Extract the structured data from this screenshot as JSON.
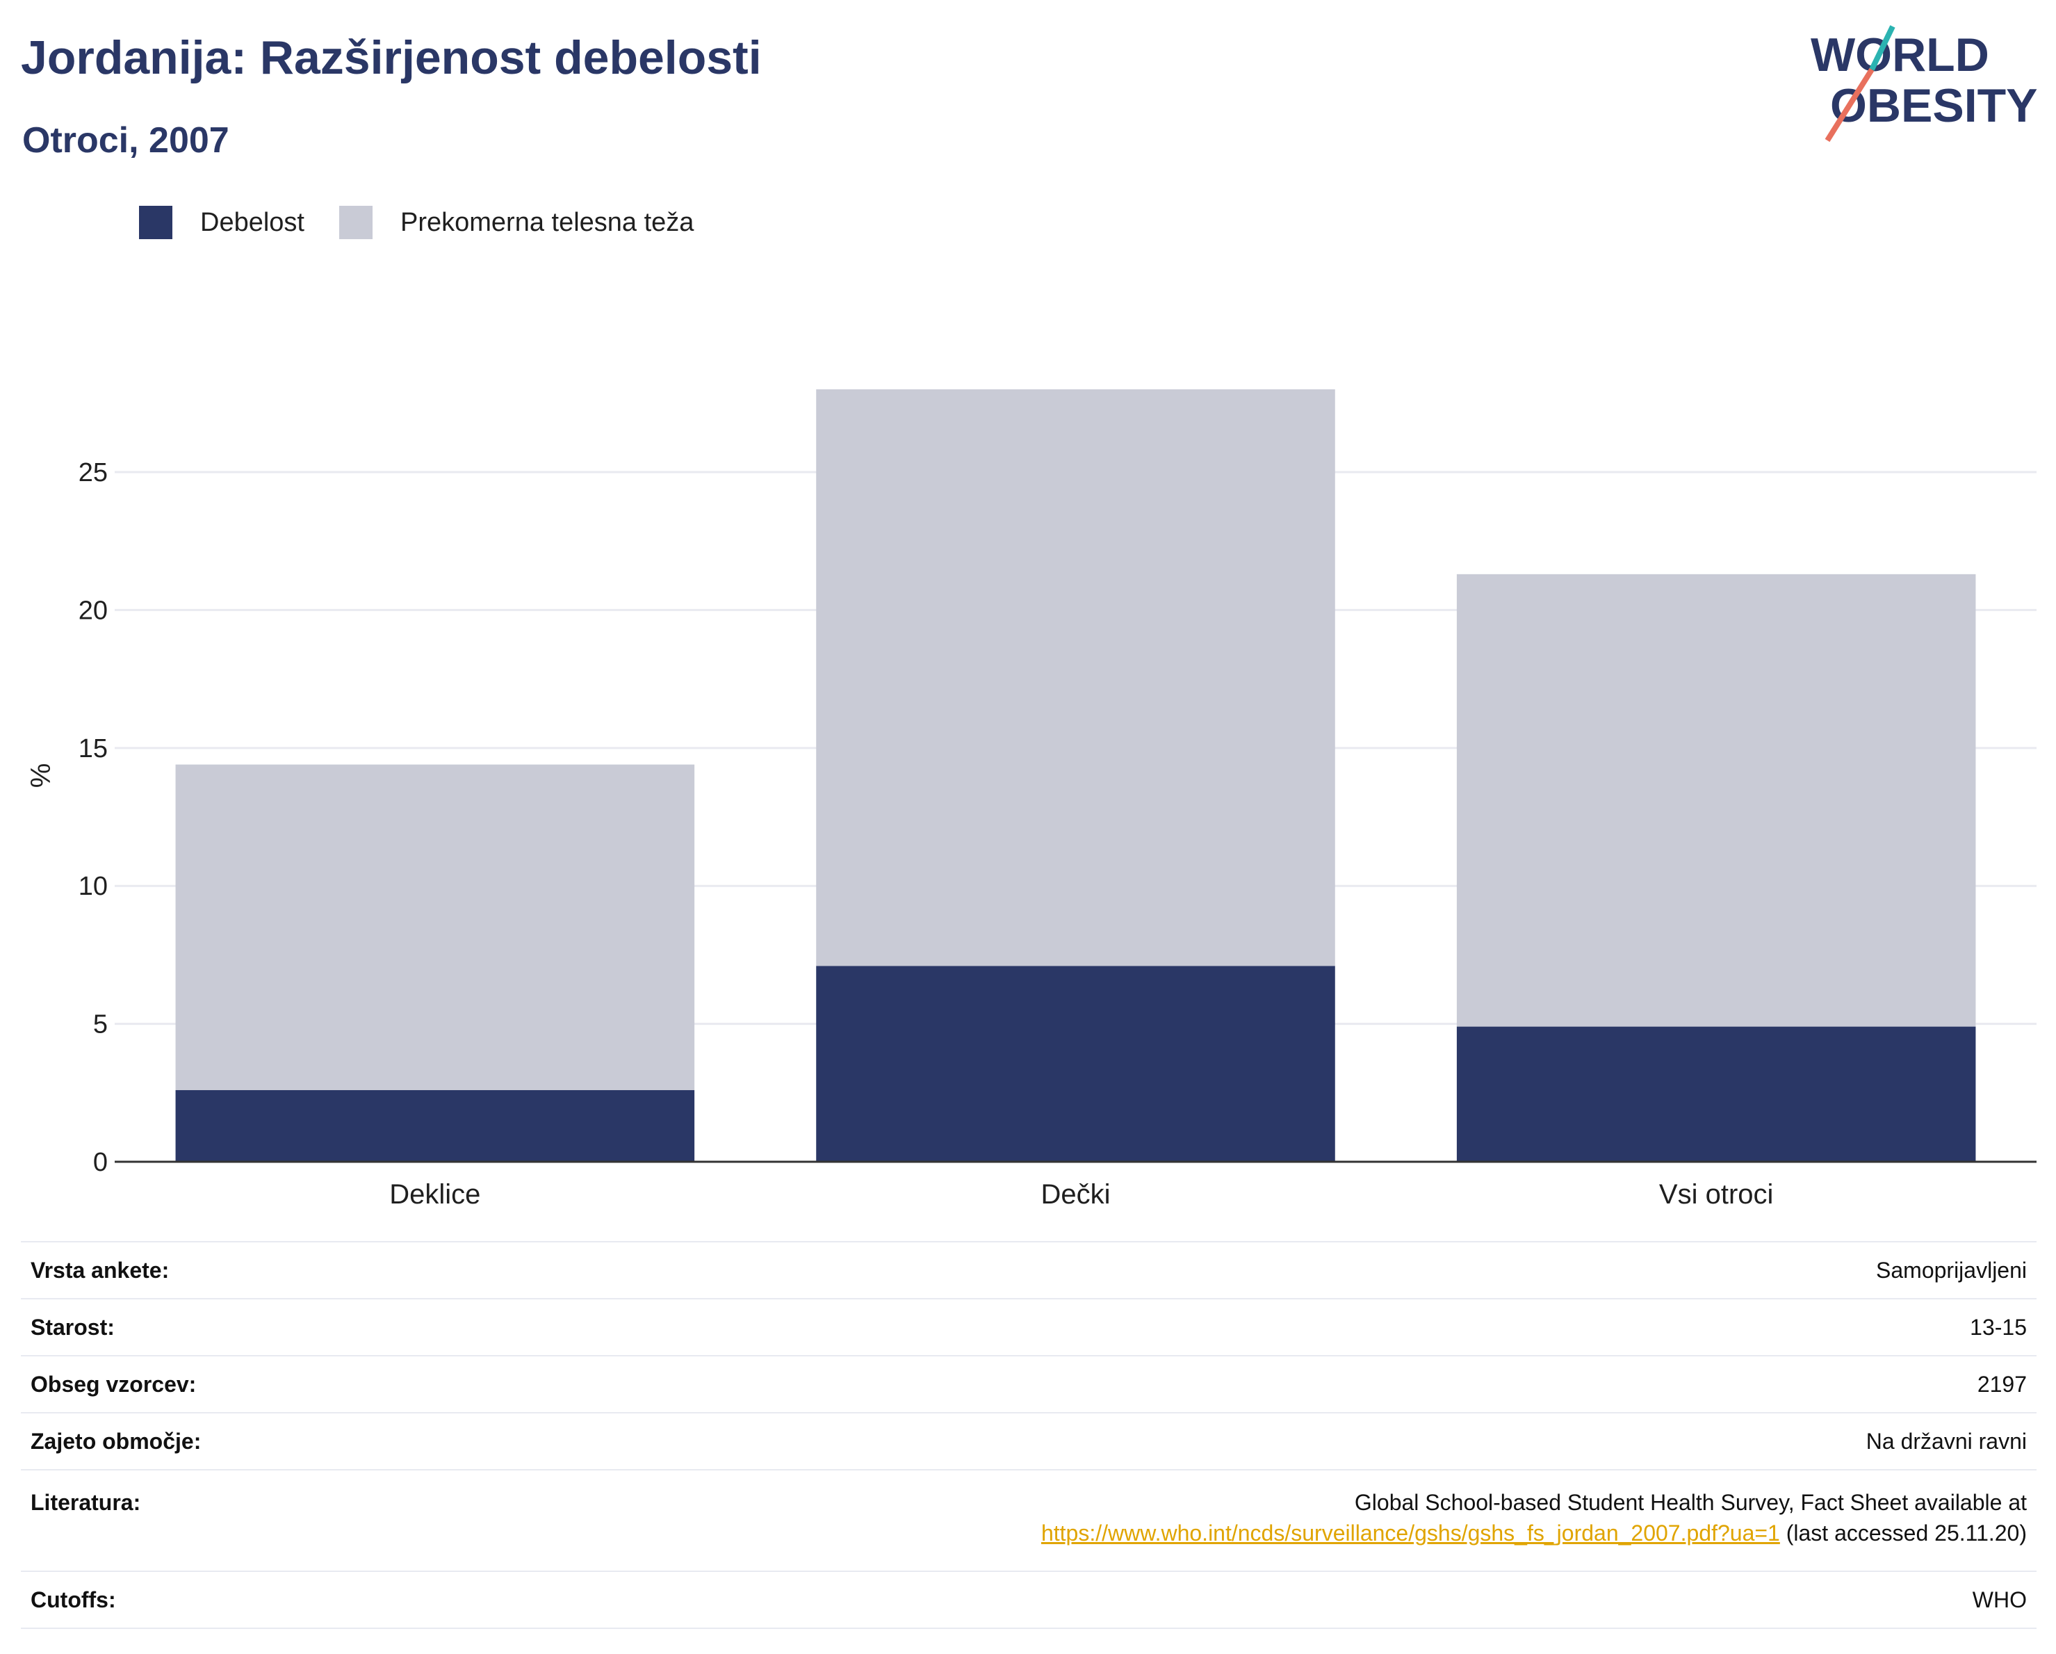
{
  "title": "Jordanija: Razširjenost debelosti",
  "subtitle": "Otroci, 2007",
  "logo": {
    "line1": "WORLD",
    "line2": "OBESITY"
  },
  "legend": {
    "obesity": "Debelost",
    "overweight": "Prekomerna telesna teža"
  },
  "colors": {
    "obesity": "#2a3766",
    "overweight": "#c9cbd6",
    "title": "#2a3766",
    "link": "#e0a400"
  },
  "chart_data": {
    "type": "bar",
    "stacked": true,
    "categories": [
      "Deklice",
      "Dečki",
      "Vsi otroci"
    ],
    "series": [
      {
        "name": "Debelost",
        "values": [
          2.6,
          7.1,
          4.9
        ]
      },
      {
        "name": "Prekomerna telesna teža",
        "values": [
          11.8,
          20.9,
          16.4
        ]
      }
    ],
    "ylabel": "%",
    "ylim": [
      0,
      28
    ],
    "yticks": [
      0,
      5,
      10,
      15,
      20,
      25
    ],
    "grid": true,
    "legend_position": "top-left"
  },
  "info": {
    "survey_type_label": "Vrsta ankete:",
    "survey_type_value": "Samoprijavljeni",
    "age_label": "Starost:",
    "age_value": "13-15",
    "sample_label": "Obseg vzorcev:",
    "sample_value": "2197",
    "area_label": "Zajeto območje:",
    "area_value": "Na državni ravni",
    "lit_label": "Literatura:",
    "lit_text": "Global School-based Student Health Survey, Fact Sheet available at",
    "lit_link": "https://www.who.int/ncds/surveillance/gshs/gshs_fs_jordan_2007.pdf?ua=1",
    "lit_suffix": " (last accessed 25.11.20)",
    "cutoffs_label": "Cutoffs:",
    "cutoffs_value": "WHO"
  }
}
